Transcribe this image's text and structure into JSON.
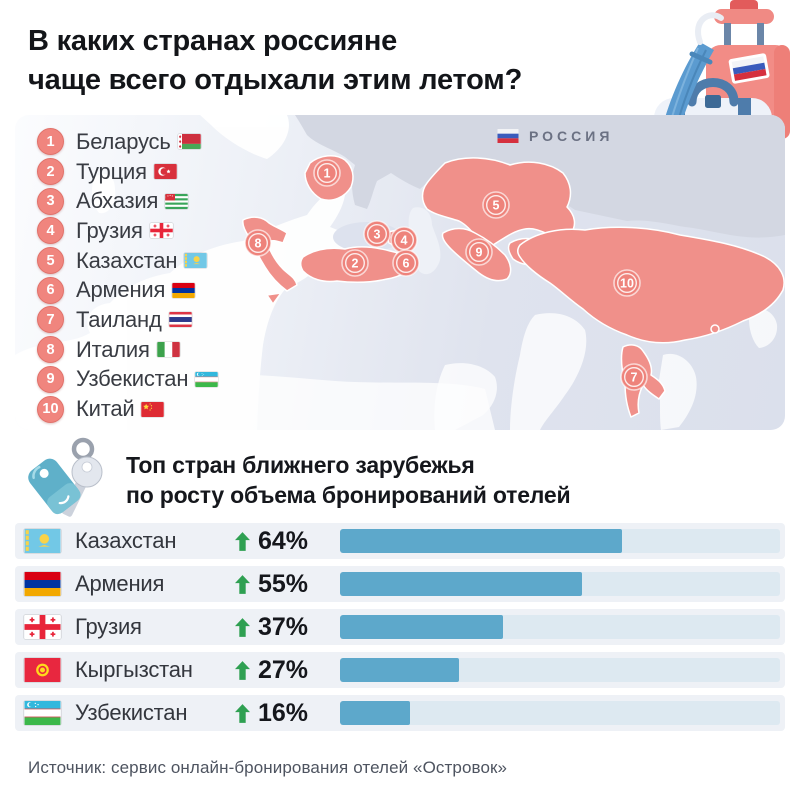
{
  "title": {
    "line1": "В каких странах россияне",
    "line2": "чаще всего отдыхали этим летом?"
  },
  "map_panel": {
    "russia_label": "РОССИЯ",
    "russia_flag": "russia"
  },
  "ranking": {
    "items": [
      {
        "rank": "1",
        "name": "Беларусь",
        "flag": "belarus"
      },
      {
        "rank": "2",
        "name": "Турция",
        "flag": "turkey"
      },
      {
        "rank": "3",
        "name": "Абхазия",
        "flag": "abkhazia"
      },
      {
        "rank": "4",
        "name": "Грузия",
        "flag": "georgia"
      },
      {
        "rank": "5",
        "name": "Казахстан",
        "flag": "kazakhstan"
      },
      {
        "rank": "6",
        "name": "Армения",
        "flag": "armenia"
      },
      {
        "rank": "7",
        "name": "Таиланд",
        "flag": "thailand"
      },
      {
        "rank": "8",
        "name": "Италия",
        "flag": "italy"
      },
      {
        "rank": "9",
        "name": "Узбекистан",
        "flag": "uzbekistan"
      },
      {
        "rank": "10",
        "name": "Китай",
        "flag": "china"
      }
    ]
  },
  "growth_section": {
    "heading_line1": "Топ стран ближнего зарубежья",
    "heading_line2": "по росту объема бронирований отелей",
    "rows": [
      {
        "name": "Казахстан",
        "flag": "kazakhstan",
        "growth": "64%",
        "pct": 64
      },
      {
        "name": "Армения",
        "flag": "armenia",
        "growth": "55%",
        "pct": 55
      },
      {
        "name": "Грузия",
        "flag": "georgia",
        "growth": "37%",
        "pct": 37
      },
      {
        "name": "Кыргызстан",
        "flag": "kyrgyzstan",
        "growth": "27%",
        "pct": 27
      },
      {
        "name": "Узбекистан",
        "flag": "uzbekistan",
        "growth": "16%",
        "pct": 16
      }
    ]
  },
  "chart_data": {
    "type": "bar",
    "orientation": "horizontal",
    "title": "Топ стран ближнего зарубежья по росту объема бронирований отелей",
    "categories": [
      "Казахстан",
      "Армения",
      "Грузия",
      "Кыргызстан",
      "Узбекистан"
    ],
    "values": [
      64,
      55,
      37,
      27,
      16
    ],
    "unit": "%",
    "xlim": [
      0,
      100
    ],
    "annotations": "зеленые стрелки вверх — рост объема бронирований",
    "bar_color": "#5da8cb",
    "track_color": "#dde9f1"
  },
  "source": {
    "text": "Источник: сервис онлайн-бронирования отелей «Островок»"
  },
  "icons": {
    "suitcase": "travel-suitcase-with-umbrella-illustration",
    "keys": "hotel-keys-icon",
    "arrow": "growth-up-arrow-icon"
  },
  "colors": {
    "accent_salmon": "#f0908a",
    "russia_gray": "#d3d7e2",
    "sea": "#dde2ee",
    "bar_blue": "#5da8cb",
    "arrow_green": "#2fa052",
    "row_stripe": "#eef1f6",
    "text_dark": "#15171c",
    "text_muted": "#4e5460"
  }
}
